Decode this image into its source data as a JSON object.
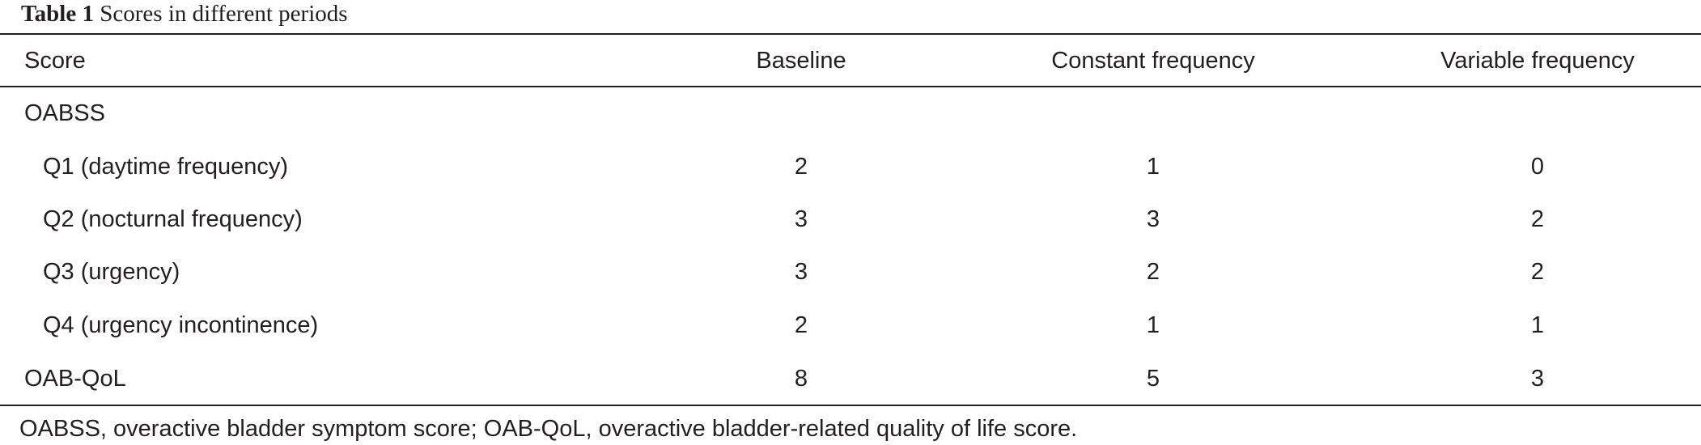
{
  "table": {
    "label": "Table 1",
    "title": "Scores in different periods",
    "headers": [
      "Score",
      "Baseline",
      "Constant frequency",
      "Variable frequency"
    ],
    "rows": [
      {
        "label": "OABSS",
        "baseline": "",
        "constant": "",
        "variable": ""
      },
      {
        "label": "Q1 (daytime frequency)",
        "baseline": "2",
        "constant": "1",
        "variable": "0"
      },
      {
        "label": "Q2 (nocturnal frequency)",
        "baseline": "3",
        "constant": "3",
        "variable": "2"
      },
      {
        "label": "Q3 (urgency)",
        "baseline": "3",
        "constant": "2",
        "variable": "2"
      },
      {
        "label": "Q4 (urgency incontinence)",
        "baseline": "2",
        "constant": "1",
        "variable": "1"
      },
      {
        "label": "OAB-QoL",
        "baseline": "8",
        "constant": "5",
        "variable": "3"
      }
    ],
    "footnote": "OABSS, overactive bladder symptom score; OAB-QoL, overactive bladder-related quality of life score."
  }
}
